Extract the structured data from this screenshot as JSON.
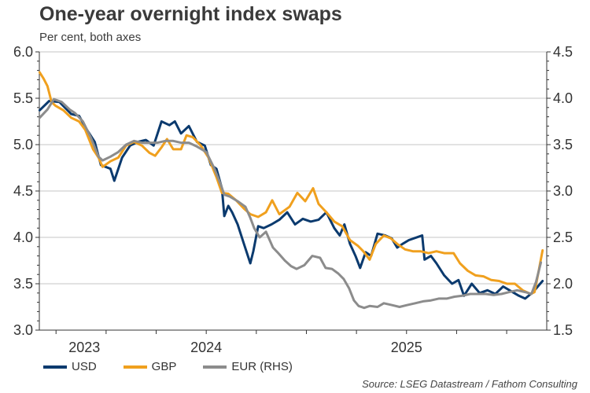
{
  "title": "One-year overnight index swaps",
  "subtitle": "Per cent, both axes",
  "source": "Source: LSEG Datastream / Fathom Consulting",
  "chart_data": {
    "type": "line",
    "title": "One-year overnight index swaps",
    "subtitle": "Per cent, both axes",
    "xlabel": "",
    "ylabel": "Per cent",
    "x_unit": "months since Jan 2023 (0 = Jan 2023)",
    "xlim": [
      2.0,
      32.4
    ],
    "x_ticks_months": [
      3,
      6,
      9,
      12,
      15,
      18,
      21,
      24,
      27,
      30
    ],
    "x_labels": [
      {
        "label": "2023",
        "month": 4.7
      },
      {
        "label": "2024",
        "month": 12
      },
      {
        "label": "2025",
        "month": 24
      }
    ],
    "y_left": {
      "ylim": [
        3.0,
        6.0
      ],
      "ticks": [
        "3.0",
        "3.5",
        "4.0",
        "4.5",
        "5.0",
        "5.5",
        "6.0"
      ]
    },
    "y_right": {
      "ylim": [
        1.5,
        4.5
      ],
      "ticks": [
        "1.5",
        "2.0",
        "2.5",
        "3.0",
        "3.5",
        "4.0",
        "4.5"
      ]
    },
    "grid": true,
    "legend_position": "bottom-left",
    "series": [
      {
        "name": "USD",
        "axis": "left",
        "color": "#0b3a6e",
        "x": [
          2.02,
          2.59,
          3.2,
          3.91,
          4.38,
          4.85,
          5.32,
          5.69,
          6.26,
          6.49,
          6.96,
          7.44,
          7.91,
          8.38,
          8.85,
          9.32,
          9.79,
          10.12,
          10.49,
          10.96,
          11.44,
          11.91,
          12.28,
          12.61,
          12.94,
          13.08,
          13.32,
          13.55,
          13.88,
          14.26,
          14.64,
          14.82,
          15.11,
          15.44,
          15.91,
          16.38,
          16.85,
          17.32,
          17.79,
          18.26,
          18.73,
          19.2,
          19.67,
          20.0,
          20.28,
          20.61,
          20.94,
          21.22,
          21.55,
          21.88,
          22.26,
          22.73,
          23.11,
          23.44,
          23.76,
          24.14,
          24.94,
          25.08,
          25.46,
          25.79,
          26.26,
          26.73,
          27.11,
          27.44,
          27.91,
          28.38,
          28.85,
          29.32,
          29.79,
          30.26,
          30.73,
          31.11,
          31.58,
          31.91,
          32.15
        ],
        "values": [
          5.37,
          5.47,
          5.46,
          5.33,
          5.31,
          5.16,
          5.03,
          4.78,
          4.74,
          4.61,
          4.86,
          4.99,
          5.03,
          5.05,
          4.99,
          5.25,
          5.21,
          5.25,
          5.12,
          5.2,
          5.03,
          4.99,
          4.78,
          4.74,
          4.53,
          4.23,
          4.34,
          4.27,
          4.14,
          3.93,
          3.72,
          3.85,
          4.12,
          4.1,
          4.14,
          4.19,
          4.27,
          4.14,
          4.2,
          4.17,
          4.19,
          4.27,
          4.1,
          4.02,
          4.14,
          3.93,
          3.8,
          3.67,
          3.84,
          3.8,
          4.04,
          4.02,
          3.99,
          3.89,
          3.93,
          3.97,
          4.02,
          3.76,
          3.8,
          3.72,
          3.59,
          3.5,
          3.54,
          3.37,
          3.5,
          3.4,
          3.43,
          3.39,
          3.47,
          3.42,
          3.37,
          3.34,
          3.41,
          3.48,
          3.53
        ]
      },
      {
        "name": "GBP",
        "axis": "left",
        "color": "#f0a01e",
        "x": [
          2.02,
          2.26,
          2.49,
          2.73,
          2.96,
          3.44,
          3.91,
          4.38,
          4.75,
          5.22,
          5.55,
          5.79,
          6.26,
          6.73,
          7.2,
          7.67,
          8.14,
          8.61,
          8.94,
          9.32,
          9.65,
          10.02,
          10.49,
          10.82,
          11.2,
          11.67,
          12.14,
          12.61,
          12.94,
          13.32,
          13.79,
          14.26,
          14.64,
          15.11,
          15.58,
          15.95,
          16.38,
          16.99,
          17.46,
          17.93,
          18.4,
          18.73,
          19.2,
          19.67,
          20.14,
          20.61,
          21.08,
          21.41,
          21.79,
          22.16,
          22.64,
          23.06,
          23.44,
          23.91,
          24.38,
          24.85,
          25.32,
          25.79,
          26.26,
          26.82,
          27.2,
          27.67,
          28.14,
          28.61,
          29.08,
          29.55,
          30.02,
          30.49,
          30.96,
          31.44,
          31.67,
          31.91,
          32.15
        ],
        "values": [
          5.78,
          5.71,
          5.63,
          5.46,
          5.42,
          5.37,
          5.29,
          5.25,
          5.16,
          4.95,
          4.86,
          4.76,
          4.82,
          4.86,
          4.99,
          5.03,
          4.99,
          4.91,
          4.88,
          4.97,
          5.06,
          4.95,
          4.95,
          5.1,
          5.08,
          4.99,
          4.86,
          4.65,
          4.48,
          4.47,
          4.4,
          4.31,
          4.25,
          4.22,
          4.27,
          4.4,
          4.25,
          4.33,
          4.48,
          4.39,
          4.53,
          4.36,
          4.27,
          4.17,
          4.12,
          3.97,
          3.91,
          3.85,
          3.76,
          3.93,
          4.02,
          3.99,
          3.93,
          3.87,
          3.85,
          3.85,
          3.83,
          3.85,
          3.83,
          3.83,
          3.72,
          3.64,
          3.59,
          3.58,
          3.54,
          3.53,
          3.5,
          3.5,
          3.43,
          3.39,
          3.41,
          3.63,
          3.86
        ]
      },
      {
        "name": "EUR (RHS)",
        "axis": "right",
        "color": "#8c8c8c",
        "x": [
          2.02,
          2.49,
          2.87,
          3.34,
          3.81,
          4.14,
          4.61,
          5.08,
          5.55,
          5.79,
          6.26,
          6.73,
          7.2,
          7.67,
          8.14,
          8.61,
          9.08,
          9.55,
          10.02,
          10.49,
          10.96,
          11.44,
          12.0,
          12.47,
          12.85,
          13.08,
          13.41,
          13.88,
          14.35,
          14.64,
          14.87,
          15.2,
          15.58,
          16.0,
          16.32,
          16.71,
          17.08,
          17.41,
          17.88,
          18.35,
          18.82,
          19.15,
          19.53,
          19.91,
          20.24,
          20.56,
          20.85,
          21.13,
          21.46,
          21.79,
          22.26,
          22.64,
          23.11,
          23.58,
          24.05,
          24.52,
          24.99,
          25.46,
          25.93,
          26.4,
          26.87,
          27.34,
          27.81,
          28.28,
          28.75,
          29.22,
          29.69,
          30.16,
          30.63,
          31.11,
          31.48,
          31.76,
          32.05
        ],
        "values": [
          3.79,
          3.88,
          3.99,
          3.96,
          3.88,
          3.84,
          3.75,
          3.58,
          3.37,
          3.33,
          3.37,
          3.42,
          3.5,
          3.54,
          3.52,
          3.52,
          3.52,
          3.54,
          3.54,
          3.52,
          3.52,
          3.48,
          3.42,
          3.25,
          3.08,
          2.96,
          2.94,
          2.89,
          2.83,
          2.71,
          2.6,
          2.5,
          2.56,
          2.39,
          2.33,
          2.25,
          2.19,
          2.16,
          2.2,
          2.3,
          2.28,
          2.17,
          2.16,
          2.11,
          2.05,
          1.95,
          1.82,
          1.76,
          1.74,
          1.76,
          1.75,
          1.79,
          1.77,
          1.75,
          1.77,
          1.79,
          1.81,
          1.82,
          1.84,
          1.84,
          1.86,
          1.87,
          1.89,
          1.89,
          1.89,
          1.88,
          1.89,
          1.91,
          1.93,
          1.91,
          1.89,
          2.02,
          2.23
        ]
      }
    ]
  }
}
